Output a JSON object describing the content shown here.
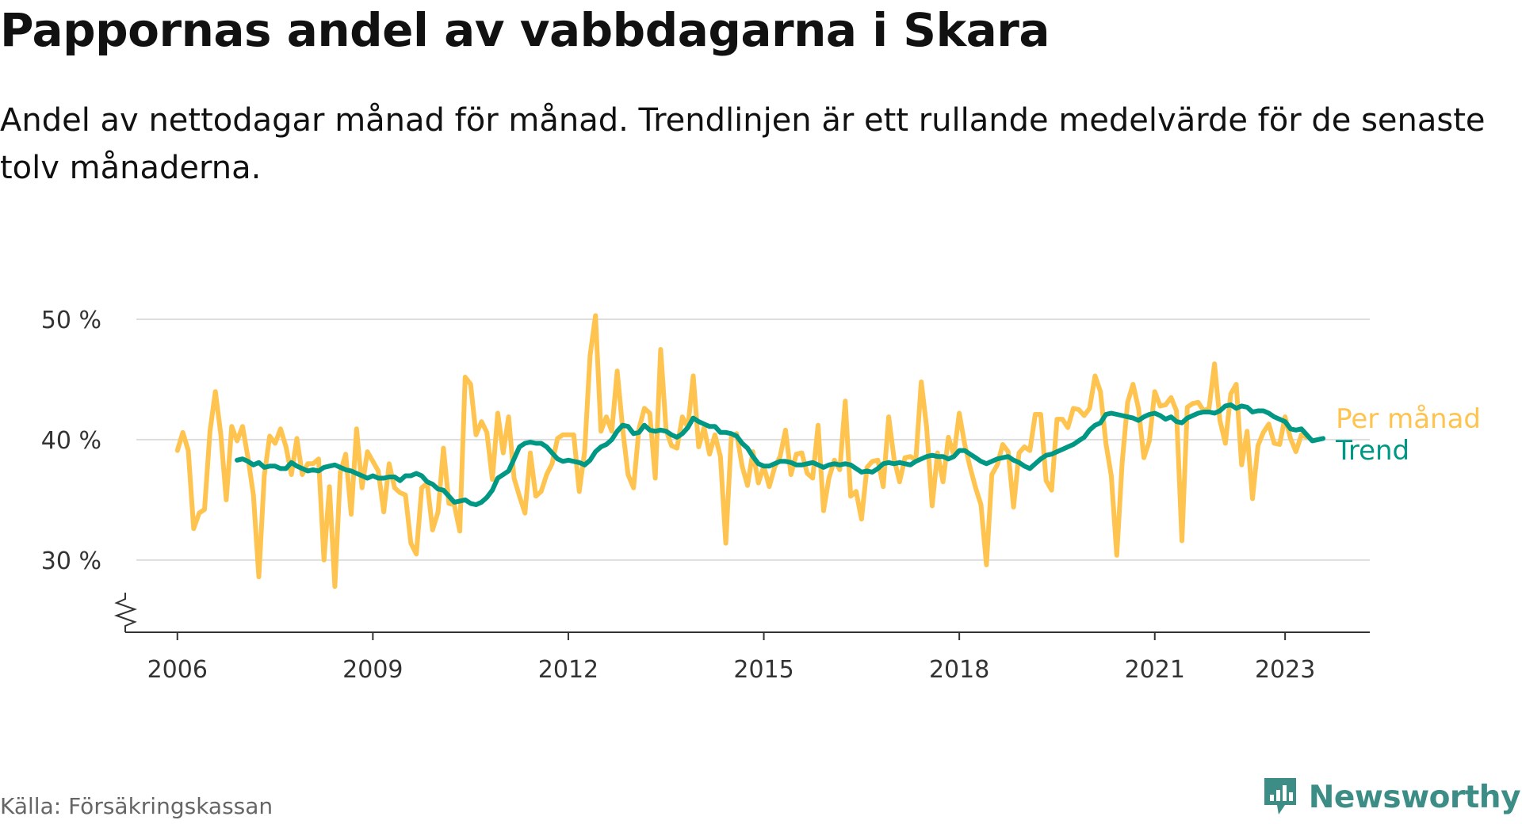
{
  "title": "Pappornas andel av vabbdagarna i Skara",
  "subtitle": "Andel av nettodagar månad för månad. Trendlinjen är ett rullande medelvärde för de senaste tolv månaderna.",
  "source": "Källa: Försäkringskassan",
  "brand": {
    "name": "Newsworthy",
    "icon": "bar-chart-logo-icon"
  },
  "colors": {
    "monthly": "#fec44f",
    "trend": "#009884",
    "grid": "#dddddd",
    "axis": "#333333",
    "text": "#333333",
    "brand": "#3c8d86"
  },
  "chart_data": {
    "type": "line",
    "title": "Pappornas andel av vabbdagarna i Skara",
    "xlabel": "",
    "ylabel": "",
    "x_start": "2006-01",
    "x_tick_labels": [
      "2006",
      "2009",
      "2012",
      "2015",
      "2018",
      "2021",
      "2023"
    ],
    "x_tick_values": [
      2006,
      2009,
      2012,
      2015,
      2018,
      2021,
      2023
    ],
    "y_tick_labels": [
      "30 %",
      "40 %",
      "50 %"
    ],
    "y_tick_values": [
      30,
      40,
      50
    ],
    "ylim": [
      24,
      50
    ],
    "xlim": [
      2005.2,
      2024.3
    ],
    "y_axis_break": true,
    "grid": "horizontal",
    "series": [
      {
        "name": "Per månad",
        "values": [
          39.1,
          40.6,
          39.1,
          32.6,
          33.9,
          34.2,
          40.7,
          44.0,
          40.4,
          35.0,
          41.1,
          39.9,
          41.1,
          38.5,
          35.4,
          28.6,
          37.0,
          40.3,
          39.7,
          40.9,
          39.4,
          37.1,
          40.1,
          37.1,
          38.0,
          38.0,
          38.4,
          30.0,
          36.1,
          27.8,
          37.3,
          38.8,
          33.8,
          40.9,
          36.0,
          39.0,
          38.2,
          37.4,
          34.0,
          38.0,
          36.0,
          35.6,
          35.4,
          31.4,
          30.5,
          36.0,
          36.4,
          32.5,
          34.0,
          39.3,
          34.7,
          34.6,
          32.4,
          45.2,
          44.6,
          40.4,
          41.5,
          40.6,
          36.7,
          42.2,
          38.9,
          41.9,
          36.8,
          35.3,
          33.9,
          38.9,
          35.3,
          35.7,
          37.1,
          38.0,
          40.1,
          40.4,
          40.4,
          40.4,
          35.7,
          39.0,
          47.0,
          50.3,
          40.7,
          41.9,
          40.7,
          45.7,
          40.9,
          37.1,
          36.0,
          40.9,
          42.6,
          42.2,
          36.8,
          47.5,
          40.8,
          39.5,
          39.3,
          41.9,
          41.0,
          45.3,
          39.4,
          41.0,
          38.8,
          40.4,
          38.6,
          31.4,
          40.2,
          40.5,
          37.8,
          36.2,
          39.0,
          36.4,
          37.8,
          36.1,
          37.7,
          38.6,
          40.8,
          37.1,
          38.8,
          38.9,
          37.2,
          36.8,
          41.2,
          34.1,
          36.8,
          38.3,
          37.5,
          43.2,
          35.3,
          35.7,
          33.4,
          37.7,
          38.2,
          38.3,
          36.1,
          41.9,
          38.4,
          36.5,
          38.5,
          38.6,
          38.3,
          44.8,
          41.0,
          34.5,
          38.9,
          36.5,
          40.2,
          38.7,
          42.2,
          39.6,
          37.7,
          36.0,
          34.6,
          29.6,
          37.1,
          37.9,
          39.6,
          39.0,
          34.4,
          38.9,
          39.4,
          39.1,
          42.1,
          42.1,
          36.6,
          35.8,
          41.7,
          41.7,
          41.0,
          42.6,
          42.5,
          42.0,
          42.6,
          45.3,
          44.0,
          39.7,
          37.0,
          30.4,
          38.1,
          43.1,
          44.6,
          42.6,
          38.5,
          39.9,
          44.0,
          42.8,
          42.9,
          43.5,
          42.4,
          31.6,
          42.7,
          43.0,
          43.1,
          42.4,
          42.6,
          46.3,
          41.6,
          39.7,
          43.8,
          44.6,
          37.9,
          40.7,
          35.1,
          39.5,
          40.6,
          41.3,
          39.7,
          39.6,
          41.9,
          40.1,
          39.0,
          40.4,
          40.2
        ]
      },
      {
        "name": "Trend",
        "values": [
          null,
          null,
          null,
          null,
          null,
          null,
          null,
          null,
          null,
          null,
          null,
          38.3,
          38.4,
          38.2,
          37.9,
          38.1,
          37.7,
          37.8,
          37.8,
          37.6,
          37.6,
          38.1,
          37.8,
          37.6,
          37.4,
          37.5,
          37.4,
          37.7,
          37.8,
          37.9,
          37.7,
          37.5,
          37.4,
          37.2,
          37.0,
          36.8,
          37.0,
          36.8,
          36.8,
          36.9,
          36.9,
          36.6,
          37.0,
          37.0,
          37.2,
          37.0,
          36.5,
          36.3,
          35.9,
          35.8,
          35.3,
          34.8,
          34.9,
          35.0,
          34.7,
          34.6,
          34.8,
          35.2,
          35.8,
          36.8,
          37.1,
          37.4,
          38.4,
          39.4,
          39.7,
          39.8,
          39.7,
          39.7,
          39.4,
          38.9,
          38.4,
          38.2,
          38.3,
          38.2,
          38.1,
          37.9,
          38.3,
          39.0,
          39.4,
          39.6,
          40.0,
          40.7,
          41.2,
          41.1,
          40.5,
          40.6,
          41.2,
          40.8,
          40.7,
          40.8,
          40.7,
          40.4,
          40.2,
          40.5,
          41.0,
          41.8,
          41.5,
          41.3,
          41.1,
          41.1,
          40.6,
          40.6,
          40.5,
          40.3,
          39.7,
          39.3,
          38.6,
          38.0,
          37.8,
          37.8,
          38.0,
          38.2,
          38.2,
          38.1,
          37.9,
          37.9,
          38.0,
          38.1,
          37.9,
          37.7,
          37.9,
          38.0,
          37.9,
          38.0,
          37.9,
          37.6,
          37.3,
          37.4,
          37.3,
          37.6,
          38.0,
          38.1,
          38.0,
          38.1,
          38.0,
          37.9,
          38.2,
          38.4,
          38.6,
          38.7,
          38.6,
          38.6,
          38.4,
          38.6,
          39.1,
          39.1,
          38.8,
          38.5,
          38.2,
          38.0,
          38.2,
          38.4,
          38.5,
          38.6,
          38.3,
          38.1,
          37.8,
          37.6,
          38.0,
          38.4,
          38.7,
          38.8,
          39.0,
          39.2,
          39.4,
          39.6,
          39.9,
          40.2,
          40.8,
          41.2,
          41.4,
          42.1,
          42.2,
          42.1,
          42.0,
          41.9,
          41.8,
          41.6,
          41.9,
          42.1,
          42.2,
          42.0,
          41.7,
          41.9,
          41.5,
          41.4,
          41.8,
          42.0,
          42.2,
          42.3,
          42.3,
          42.2,
          42.4,
          42.8,
          42.9,
          42.6,
          42.8,
          42.7,
          42.3,
          42.4,
          42.4,
          42.2,
          41.9,
          41.7,
          41.5,
          40.9,
          40.8,
          40.9,
          40.4,
          39.9,
          40.0,
          40.1
        ]
      }
    ]
  }
}
